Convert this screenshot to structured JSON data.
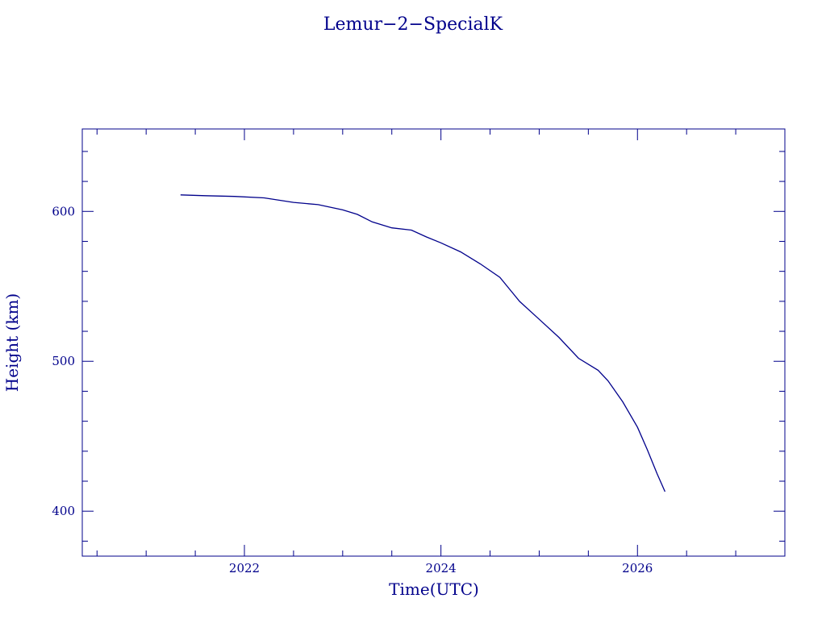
{
  "chart_data": {
    "type": "line",
    "title": "Lemur−2−SpecialK",
    "xlabel": "Time(UTC)",
    "ylabel": "Height (km)",
    "xlim": [
      2020.35,
      2027.5
    ],
    "ylim": [
      370,
      655
    ],
    "x_ticks": [
      2022,
      2024,
      2026
    ],
    "x_tick_labels": [
      "2022",
      "2024",
      "2026"
    ],
    "x_minor_step": 0.5,
    "y_ticks": [
      400,
      500,
      600
    ],
    "y_tick_labels": [
      "400",
      "500",
      "600"
    ],
    "y_minor_step": 20,
    "grid": false,
    "color": "#00008b",
    "series": [
      {
        "x": [
          2021.35,
          2021.6,
          2021.9,
          2022.2,
          2022.5,
          2022.75,
          2023.0,
          2023.15,
          2023.3,
          2023.5,
          2023.7,
          2023.85,
          2024.0,
          2024.2,
          2024.4,
          2024.6,
          2024.8,
          2025.0,
          2025.2,
          2025.4,
          2025.6,
          2025.7,
          2025.85,
          2026.0,
          2026.1,
          2026.2,
          2026.28
        ],
        "y": [
          611,
          610.5,
          610,
          609,
          606,
          604.5,
          601,
          598,
          593,
          589,
          587.5,
          583,
          579,
          573,
          565,
          556,
          540,
          528,
          516,
          502,
          494,
          487,
          473,
          456,
          441,
          425,
          413
        ]
      }
    ]
  }
}
